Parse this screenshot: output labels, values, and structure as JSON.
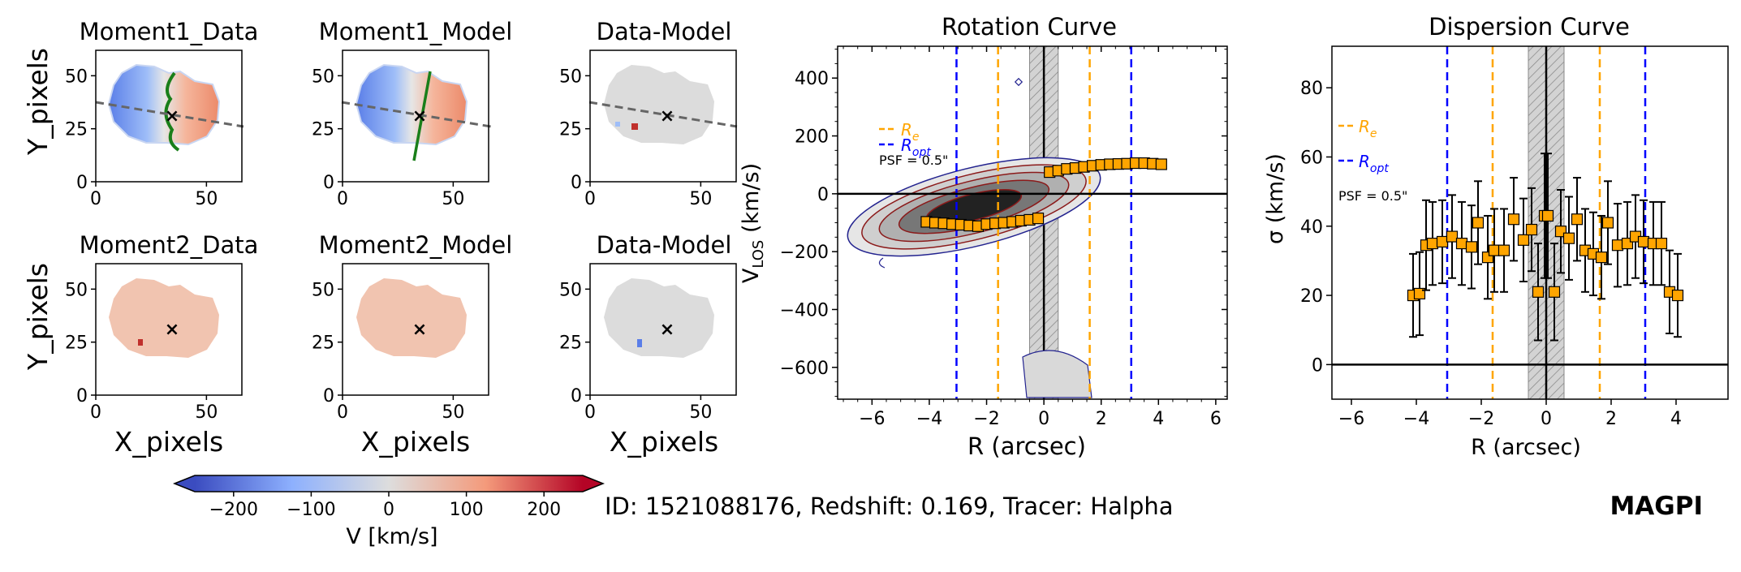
{
  "figure": {
    "id_line": "ID: 1521088176,  Redshift: 0.169, Tracer: Halpha",
    "logo": "MAGPI",
    "logo_color": "#800080"
  },
  "map_panels": {
    "x_label": "X_pixels",
    "y_label": "Y_pixels",
    "x_ticks": [
      "0",
      "50"
    ],
    "y_ticks": [
      "0",
      "25",
      "50"
    ],
    "titles": [
      "Moment1_Data",
      "Moment1_Model",
      "Data-Model",
      "Moment2_Data",
      "Moment2_Model",
      "Data-Model"
    ],
    "center_marker": "×"
  },
  "colorbar": {
    "label": "V [km/s]",
    "ticks": [
      "−200",
      "−100",
      "0",
      "100",
      "200"
    ],
    "range": [
      -250,
      250
    ],
    "cmap": [
      "#3b4cc0",
      "#8db0fe",
      "#dddddd",
      "#f49a7b",
      "#b40426"
    ]
  },
  "chart_data": [
    {
      "type": "scatter",
      "title": "Rotation Curve",
      "xlabel": "R (arcsec)",
      "ylabel_main": "V",
      "ylabel_sub": "LOS",
      "ylabel_unit": " (km/s)",
      "xlim": [
        -7.2,
        6.4
      ],
      "ylim": [
        -710,
        510
      ],
      "xticks": [
        -6,
        -4,
        -2,
        0,
        2,
        4,
        6
      ],
      "xtick_labels": [
        "−6",
        "−4",
        "−2",
        "0",
        "2",
        "4",
        "6"
      ],
      "yticks": [
        -600,
        -400,
        -200,
        0,
        200,
        400
      ],
      "ytick_labels": [
        "−600",
        "−400",
        "−200",
        "0",
        "200",
        "400"
      ],
      "legend": [
        {
          "label_main": "R",
          "label_sub": "e",
          "color": "#ffa500"
        },
        {
          "label_main": "R",
          "label_sub": "opt",
          "color": "#0000ff"
        }
      ],
      "psf_note": "PSF = 0.5\"",
      "re_lines": [
        -1.6,
        1.6
      ],
      "ropt_lines": [
        -3.05,
        3.05
      ],
      "psf_band": [
        -0.5,
        0.5
      ],
      "points_color": "#ffa500",
      "x": [
        -4.1,
        -3.8,
        -3.5,
        -3.2,
        -2.9,
        -2.6,
        -2.3,
        -2.0,
        -1.7,
        -1.4,
        -1.1,
        -0.8,
        -0.5,
        -0.2,
        0.2,
        0.5,
        0.8,
        1.1,
        1.4,
        1.7,
        2.0,
        2.3,
        2.6,
        2.9,
        3.2,
        3.5,
        3.8,
        4.1
      ],
      "y": [
        -97,
        -100,
        -102,
        -105,
        -107,
        -110,
        -112,
        -105,
        -102,
        -100,
        -97,
        -93,
        -90,
        -85,
        75,
        80,
        86,
        89,
        93,
        97,
        100,
        102,
        103,
        104,
        106,
        106,
        104,
        102
      ]
    },
    {
      "type": "scatter",
      "title": "Dispersion Curve",
      "xlabel": "R (arcsec)",
      "ylabel": "σ (km/s)",
      "xlim": [
        -6.6,
        5.6
      ],
      "ylim": [
        -10,
        92
      ],
      "xticks": [
        -6,
        -4,
        -2,
        0,
        2,
        4
      ],
      "xtick_labels": [
        "−6",
        "−4",
        "−2",
        "0",
        "2",
        "4"
      ],
      "yticks": [
        0,
        20,
        40,
        60,
        80
      ],
      "ytick_labels": [
        "0",
        "20",
        "40",
        "60",
        "80"
      ],
      "legend": [
        {
          "label_main": "R",
          "label_sub": "e",
          "color": "#ffa500"
        },
        {
          "label_main": "R",
          "label_sub": "opt",
          "color": "#0000ff"
        }
      ],
      "psf_note": "PSF = 0.5\"",
      "re_lines": [
        -1.65,
        1.65
      ],
      "ropt_lines": [
        -3.05,
        3.05
      ],
      "psf_band": [
        -0.55,
        0.55
      ],
      "points_color": "#ffa500",
      "x": [
        -4.1,
        -3.9,
        -3.7,
        -3.5,
        -3.2,
        -2.9,
        -2.6,
        -2.3,
        -2.1,
        -1.8,
        -1.6,
        -1.3,
        -1.0,
        -0.7,
        -0.45,
        -0.25,
        -0.05,
        0.05,
        0.25,
        0.45,
        0.7,
        0.95,
        1.2,
        1.45,
        1.7,
        1.9,
        2.2,
        2.5,
        2.75,
        3.0,
        3.3,
        3.55,
        3.8,
        4.05
      ],
      "y": [
        20,
        20.5,
        34.5,
        35,
        35.5,
        37,
        35,
        34,
        41,
        31,
        33,
        33,
        42,
        36,
        39,
        21,
        43,
        43,
        21,
        38.5,
        36.5,
        42,
        33,
        32,
        31,
        41,
        34.5,
        35,
        37,
        35.5,
        35,
        35,
        21,
        20
      ],
      "err": [
        12,
        12,
        13,
        12,
        12,
        12,
        12,
        12,
        12,
        12,
        12,
        12,
        12,
        12,
        12,
        14,
        18,
        18,
        14,
        12,
        12,
        12,
        12,
        12,
        12,
        12,
        12,
        12,
        12,
        12,
        12,
        12,
        12,
        12
      ]
    }
  ]
}
